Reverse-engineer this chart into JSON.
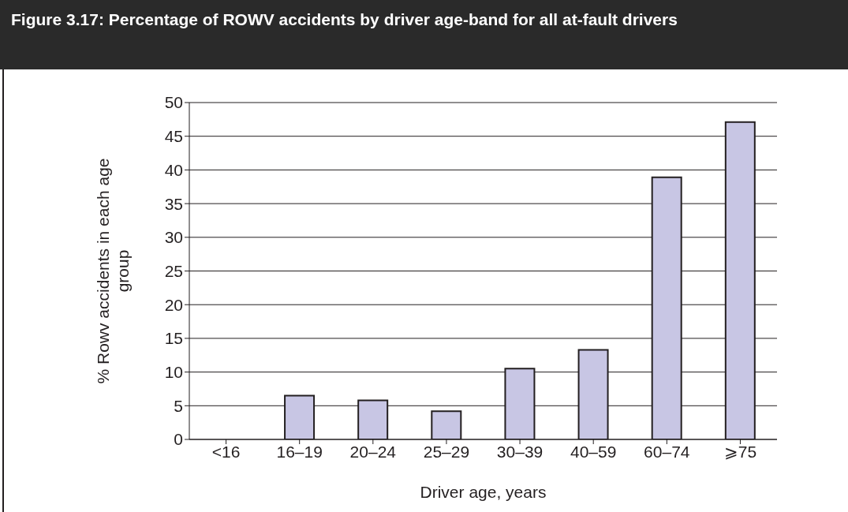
{
  "chart_data": {
    "type": "bar",
    "title": "Figure 3.17:  Percentage of ROWV accidents by driver age-band for all at-fault drivers",
    "xlabel": "Driver age, years",
    "ylabel": "% Rowv accidents in each age group",
    "categories": [
      "<16",
      "16–19",
      "20–24",
      "25–29",
      "30–39",
      "40–59",
      "60–74",
      "⩾75"
    ],
    "values": [
      0,
      6.5,
      5.8,
      4.2,
      10.5,
      13.3,
      38.9,
      47.1
    ],
    "color": "#c8c6e4",
    "ylim": [
      0,
      50
    ],
    "yticks": [
      0,
      5,
      10,
      15,
      20,
      25,
      30,
      35,
      40,
      45,
      50
    ],
    "grid": "y"
  }
}
